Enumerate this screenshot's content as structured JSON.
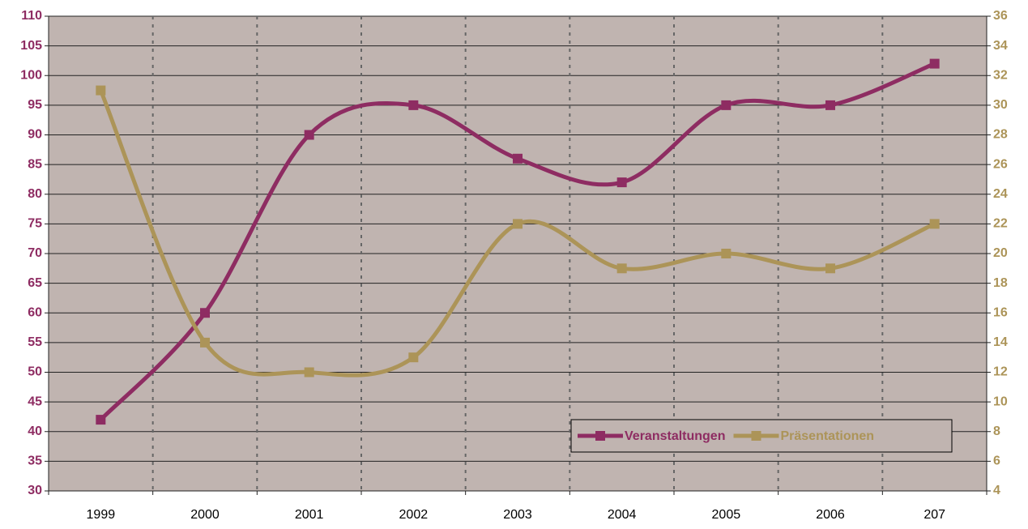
{
  "chart_data": {
    "type": "line",
    "categories": [
      "1999",
      "2000",
      "2001",
      "2002",
      "2003",
      "2004",
      "2005",
      "2006",
      "207"
    ],
    "series": [
      {
        "name": "Veranstaltungen",
        "color": "#8e2c62",
        "values": [
          42,
          60,
          90,
          95,
          86,
          82,
          95,
          95,
          102
        ]
      },
      {
        "name": "Präsentationen",
        "color": "#ac9458",
        "axis": "y2",
        "values": [
          31,
          14,
          12,
          13,
          22,
          19,
          20,
          19,
          22
        ]
      }
    ],
    "ylim": [
      30,
      110
    ],
    "yticks": [
      30,
      35,
      40,
      45,
      50,
      55,
      60,
      65,
      70,
      75,
      80,
      85,
      90,
      95,
      100,
      105,
      110
    ],
    "y2lim": [
      4,
      36
    ],
    "y2ticks": [
      4,
      6,
      8,
      10,
      12,
      14,
      16,
      18,
      20,
      22,
      24,
      26,
      28,
      30,
      32,
      34,
      36
    ],
    "grid": true,
    "smooth": true,
    "legend": "lower right"
  }
}
